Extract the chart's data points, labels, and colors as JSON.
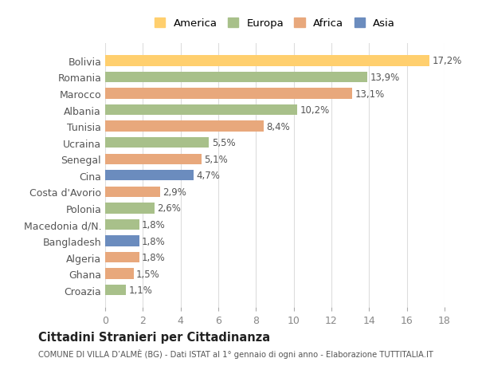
{
  "countries": [
    "Bolivia",
    "Romania",
    "Marocco",
    "Albania",
    "Tunisia",
    "Ucraina",
    "Senegal",
    "Cina",
    "Costa d'Avorio",
    "Polonia",
    "Macedonia d/N.",
    "Bangladesh",
    "Algeria",
    "Ghana",
    "Croazia"
  ],
  "values": [
    17.2,
    13.9,
    13.1,
    10.2,
    8.4,
    5.5,
    5.1,
    4.7,
    2.9,
    2.6,
    1.8,
    1.8,
    1.8,
    1.5,
    1.1
  ],
  "labels": [
    "17,2%",
    "13,9%",
    "13,1%",
    "10,2%",
    "8,4%",
    "5,5%",
    "5,1%",
    "4,7%",
    "2,9%",
    "2,6%",
    "1,8%",
    "1,8%",
    "1,8%",
    "1,5%",
    "1,1%"
  ],
  "continents": [
    "America",
    "Europa",
    "Africa",
    "Europa",
    "Africa",
    "Europa",
    "Africa",
    "Asia",
    "Africa",
    "Europa",
    "Europa",
    "Asia",
    "Africa",
    "Africa",
    "Europa"
  ],
  "colors": {
    "America": "#FFCF6E",
    "Europa": "#A8C08A",
    "Africa": "#E8A87C",
    "Asia": "#6B8CBE"
  },
  "legend_order": [
    "America",
    "Europa",
    "Africa",
    "Asia"
  ],
  "xlim": [
    0,
    18
  ],
  "xticks": [
    0,
    2,
    4,
    6,
    8,
    10,
    12,
    14,
    16,
    18
  ],
  "title": "Cittadini Stranieri per Cittadinanza",
  "subtitle": "COMUNE DI VILLA D’ALMÈ (BG) - Dati ISTAT al 1° gennaio di ogni anno - Elaborazione TUTTITALIA.IT",
  "background_color": "#ffffff",
  "grid_color": "#dddddd"
}
